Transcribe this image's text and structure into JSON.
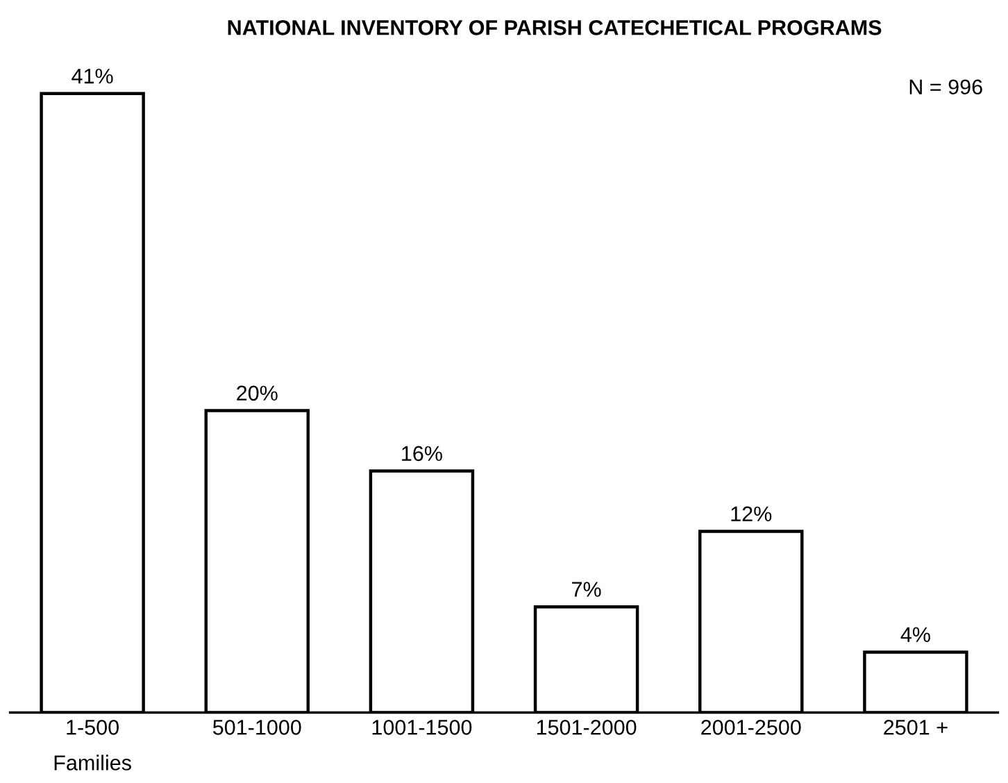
{
  "chart_data": {
    "type": "bar",
    "title": "NATIONAL INVENTORY OF PARISH CATECHETICAL PROGRAMS",
    "xlabel": "Families",
    "categories": [
      "1-500",
      "501-1000",
      "1001-1500",
      "1501-2000",
      "2001-2500",
      "2501 +"
    ],
    "values": [
      41,
      20,
      16,
      7,
      12,
      4
    ],
    "value_labels": [
      "41%",
      "20%",
      "16%",
      "7%",
      "12%",
      "4%"
    ],
    "color": "#ffffff",
    "annotations": [
      "N = 996"
    ],
    "grid": false,
    "legend": false
  }
}
